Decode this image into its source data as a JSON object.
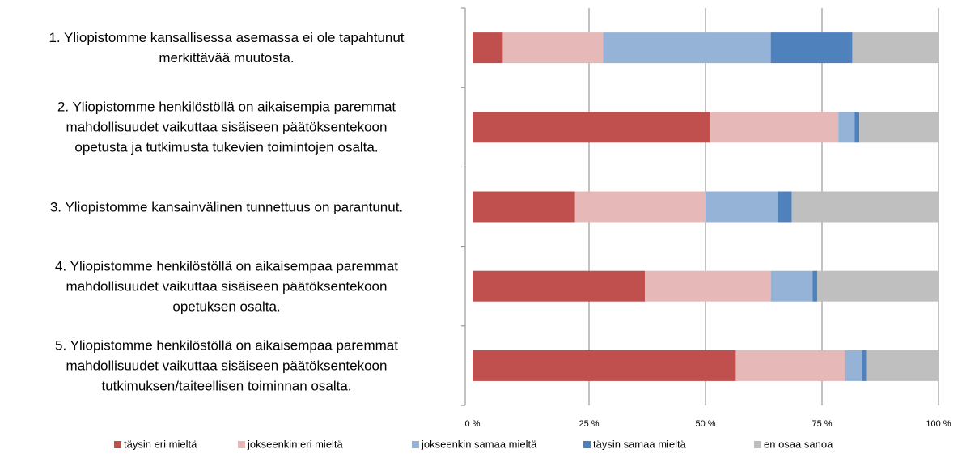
{
  "chart_data": {
    "type": "stacked_bar_horizontal",
    "categories": [
      "1. Yliopistomme kansallisessa asemassa ei ole tapahtunut\nmerkittävää muutosta.",
      "2. Yliopistomme henkilöstöllä on aikaisempia paremmat\nmahdollisuudet vaikuttaa sisäiseen päätöksentekoon\nopetusta ja tutkimusta tukevien toimintojen osalta.",
      "3. Yliopistomme kansainvälinen tunnettuus on parantunut.",
      "4. Yliopistomme henkilöstöllä on aikaisempaa paremmat\nmahdollisuudet vaikuttaa sisäiseen päätöksentekoon\nopetuksen osalta.",
      "5. Yliopistomme henkilöstöllä on aikaisempaa paremmat\nmahdollisuudet vaikuttaa sisäiseen päätöksentekoon\ntutkimuksen/taiteellisen toiminnan osalta."
    ],
    "series": [
      {
        "name": "täysin eri mieltä",
        "color": "#c0504d",
        "values": [
          6.5,
          51,
          22,
          37,
          56.5
        ]
      },
      {
        "name": "jokseenkin eri mieltä",
        "color": "#e6b9b8",
        "values": [
          21.5,
          27.5,
          28,
          27,
          23.5
        ]
      },
      {
        "name": "jokseenkin samaa mieltä",
        "color": "#95b3d7",
        "values": [
          36,
          3.5,
          15.5,
          9,
          3.5
        ]
      },
      {
        "name": "täysin samaa mieltä",
        "color": "#4f81bd",
        "values": [
          17.5,
          1,
          3,
          1,
          1
        ]
      },
      {
        "name": "en osaa sanoa",
        "color": "#bfbfbf",
        "values": [
          18.5,
          17,
          31.5,
          26,
          15.5
        ]
      }
    ],
    "xlim": [
      0,
      100
    ],
    "xticks": [
      {
        "value": 0,
        "label": "0 %"
      },
      {
        "value": 25,
        "label": "25 %"
      },
      {
        "value": 50,
        "label": "50 %"
      },
      {
        "value": 75,
        "label": "75 %"
      },
      {
        "value": 100,
        "label": "100 %"
      }
    ],
    "grid": true,
    "legend": "bottom"
  }
}
